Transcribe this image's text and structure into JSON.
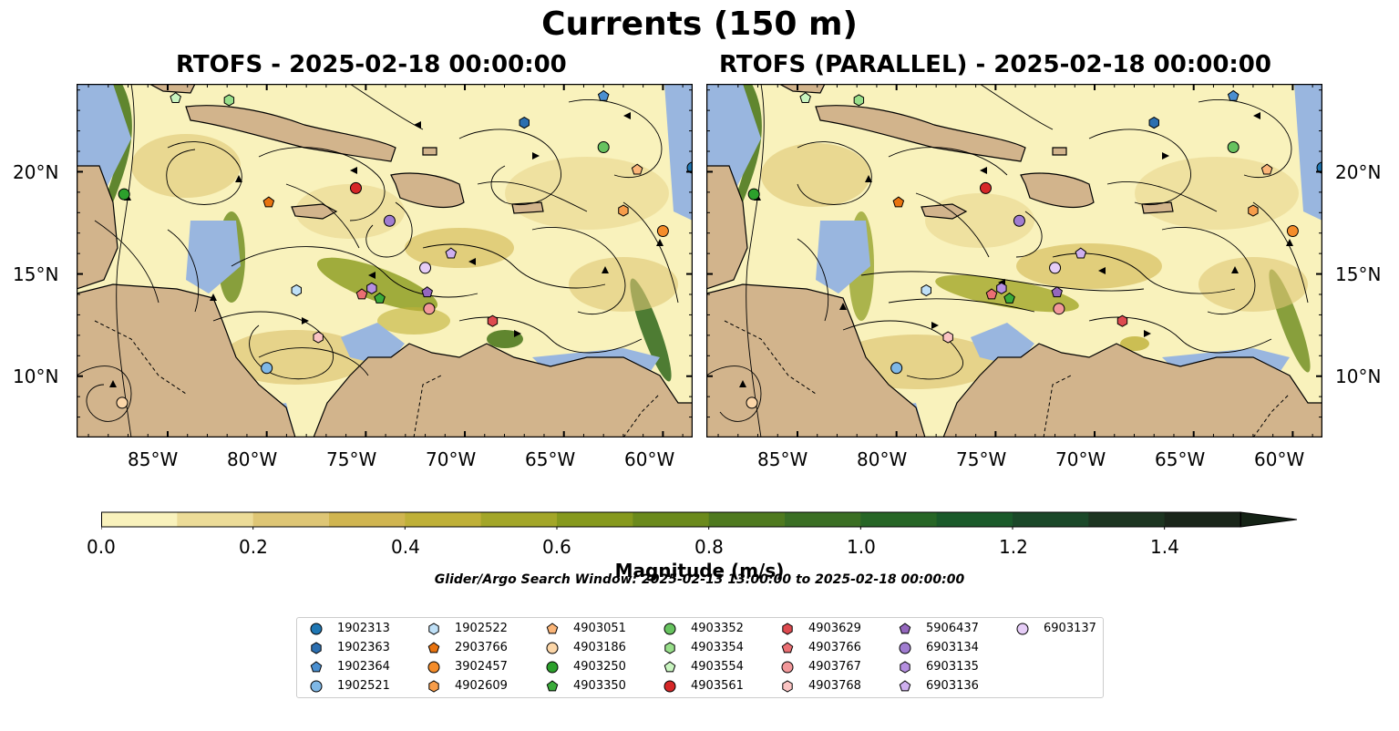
{
  "title": "Currents (150 m)",
  "panels": [
    {
      "title": "RTOFS - 2025-02-18 00:00:00"
    },
    {
      "title": "RTOFS (PARALLEL) - 2025-02-18 00:00:00"
    }
  ],
  "axes": {
    "x_ticks": [
      "85°W",
      "80°W",
      "75°W",
      "70°W",
      "65°W",
      "60°W"
    ],
    "x_values": [
      -85,
      -80,
      -75,
      -70,
      -65,
      -60
    ],
    "y_ticks": [
      "20°N",
      "15°N",
      "10°N"
    ],
    "y_values": [
      20,
      15,
      10
    ],
    "lon_range": [
      -89.6,
      -58.5
    ],
    "lat_range": [
      7.0,
      24.3
    ]
  },
  "colorbar": {
    "label": "Magnitude (m/s)",
    "ticks": [
      "0.0",
      "0.2",
      "0.4",
      "0.6",
      "0.8",
      "1.0",
      "1.2",
      "1.4"
    ],
    "tick_values": [
      0.0,
      0.2,
      0.4,
      0.6,
      0.8,
      1.0,
      1.2,
      1.4
    ],
    "range": [
      0.0,
      1.5
    ],
    "extend": "max",
    "colors": [
      "#f9f2bc",
      "#ecdc98",
      "#dec675",
      "#d0b550",
      "#bfb038",
      "#a3a628",
      "#86991d",
      "#6b8a1c",
      "#4f7a1f",
      "#3b6f24",
      "#276626",
      "#1a5a2a",
      "#1b4829",
      "#1d3521",
      "#1a261a",
      "#152316"
    ]
  },
  "search_window": "Glider/Argo Search Window: 2025-02-13 13:00:00 to 2025-02-18 00:00:00",
  "colors": {
    "land": "#d2b48c",
    "water": "#99b6df",
    "legend_border": "#cccccc"
  },
  "legend": [
    {
      "label": "1902313",
      "marker": "circle",
      "color": "#1f77b4"
    },
    {
      "label": "1902363",
      "marker": "hexagon",
      "color": "#2c6fb0"
    },
    {
      "label": "1902364",
      "marker": "pentagon",
      "color": "#4a8fd0"
    },
    {
      "label": "1902521",
      "marker": "circle",
      "color": "#7fb8e6"
    },
    {
      "label": "1902522",
      "marker": "hexagon",
      "color": "#bfe0f7"
    },
    {
      "label": "2903766",
      "marker": "pentagon",
      "color": "#e8730f"
    },
    {
      "label": "3902457",
      "marker": "circle",
      "color": "#f48c2a"
    },
    {
      "label": "4902609",
      "marker": "hexagon",
      "color": "#f79d4a"
    },
    {
      "label": "4903051",
      "marker": "pentagon",
      "color": "#fbb578"
    },
    {
      "label": "4903186",
      "marker": "circle",
      "color": "#fcd6a8"
    },
    {
      "label": "4903250",
      "marker": "circle",
      "color": "#2ca02c"
    },
    {
      "label": "4903350",
      "marker": "pentagon",
      "color": "#3aab3a"
    },
    {
      "label": "4903352",
      "marker": "circle",
      "color": "#67c35f"
    },
    {
      "label": "4903354",
      "marker": "hexagon",
      "color": "#98df8a"
    },
    {
      "label": "4903554",
      "marker": "pentagon",
      "color": "#c9f5c0"
    },
    {
      "label": "4903561",
      "marker": "circle",
      "color": "#d62728"
    },
    {
      "label": "4903629",
      "marker": "hexagon",
      "color": "#dd4a4f"
    },
    {
      "label": "4903766",
      "marker": "pentagon",
      "color": "#ea6f73"
    },
    {
      "label": "4903767",
      "marker": "circle",
      "color": "#f2989a"
    },
    {
      "label": "4903768",
      "marker": "hexagon",
      "color": "#fbc4c3"
    },
    {
      "label": "5906437",
      "marker": "pentagon",
      "color": "#9467bd"
    },
    {
      "label": "6903134",
      "marker": "circle",
      "color": "#a07cd0"
    },
    {
      "label": "6903135",
      "marker": "hexagon",
      "color": "#b58fe0"
    },
    {
      "label": "6903136",
      "marker": "pentagon",
      "color": "#cfb0ef"
    },
    {
      "label": "6903137",
      "marker": "circle",
      "color": "#e6cdf7"
    }
  ],
  "chart_data": {
    "type": "map",
    "observation_points": {
      "panel_1": [
        {
          "id": "1902313",
          "lon": -58.5,
          "lat": 20.2
        },
        {
          "id": "1902363",
          "lon": -67.0,
          "lat": 22.4
        },
        {
          "id": "1902364",
          "lon": -63.0,
          "lat": 23.7
        },
        {
          "id": "1902521",
          "lon": -80.0,
          "lat": 10.4
        },
        {
          "id": "1902522",
          "lon": -78.5,
          "lat": 14.2
        },
        {
          "id": "2903766",
          "lon": -79.9,
          "lat": 18.5
        },
        {
          "id": "3902457",
          "lon": -60.0,
          "lat": 17.1
        },
        {
          "id": "4902609",
          "lon": -62.0,
          "lat": 18.1
        },
        {
          "id": "4903051",
          "lon": -61.3,
          "lat": 20.1
        },
        {
          "id": "4903186",
          "lon": -87.3,
          "lat": 8.7
        },
        {
          "id": "4903250",
          "lon": -87.2,
          "lat": 18.9
        },
        {
          "id": "4903350",
          "lon": -74.3,
          "lat": 13.8
        },
        {
          "id": "4903352",
          "lon": -63.0,
          "lat": 21.2
        },
        {
          "id": "4903354",
          "lon": -81.9,
          "lat": 23.5
        },
        {
          "id": "4903554",
          "lon": -84.6,
          "lat": 23.6
        },
        {
          "id": "4903561",
          "lon": -75.5,
          "lat": 19.2
        },
        {
          "id": "4903629",
          "lon": -68.6,
          "lat": 12.7
        },
        {
          "id": "4903766",
          "lon": -75.2,
          "lat": 14.0
        },
        {
          "id": "4903767",
          "lon": -71.8,
          "lat": 13.3
        },
        {
          "id": "4903768",
          "lon": -77.4,
          "lat": 11.9
        },
        {
          "id": "5906437",
          "lon": -71.9,
          "lat": 14.1
        },
        {
          "id": "6903134",
          "lon": -73.8,
          "lat": 17.6
        },
        {
          "id": "6903135",
          "lon": -74.7,
          "lat": 14.3
        },
        {
          "id": "6903136",
          "lon": -70.7,
          "lat": 16.0
        },
        {
          "id": "6903137",
          "lon": -72.0,
          "lat": 15.3
        }
      ],
      "panel_2": [
        {
          "id": "1902313",
          "lon": -58.5,
          "lat": 20.2
        },
        {
          "id": "1902363",
          "lon": -67.0,
          "lat": 22.4
        },
        {
          "id": "1902364",
          "lon": -63.0,
          "lat": 23.7
        },
        {
          "id": "1902521",
          "lon": -80.0,
          "lat": 10.4
        },
        {
          "id": "1902522",
          "lon": -78.5,
          "lat": 14.2
        },
        {
          "id": "2903766",
          "lon": -79.9,
          "lat": 18.5
        },
        {
          "id": "3902457",
          "lon": -60.0,
          "lat": 17.1
        },
        {
          "id": "4902609",
          "lon": -62.0,
          "lat": 18.1
        },
        {
          "id": "4903051",
          "lon": -61.3,
          "lat": 20.1
        },
        {
          "id": "4903186",
          "lon": -87.3,
          "lat": 8.7
        },
        {
          "id": "4903250",
          "lon": -87.2,
          "lat": 18.9
        },
        {
          "id": "4903350",
          "lon": -74.3,
          "lat": 13.8
        },
        {
          "id": "4903352",
          "lon": -63.0,
          "lat": 21.2
        },
        {
          "id": "4903354",
          "lon": -81.9,
          "lat": 23.5
        },
        {
          "id": "4903554",
          "lon": -84.6,
          "lat": 23.6
        },
        {
          "id": "4903561",
          "lon": -75.5,
          "lat": 19.2
        },
        {
          "id": "4903629",
          "lon": -68.6,
          "lat": 12.7
        },
        {
          "id": "4903766",
          "lon": -75.2,
          "lat": 14.0
        },
        {
          "id": "4903767",
          "lon": -71.8,
          "lat": 13.3
        },
        {
          "id": "4903768",
          "lon": -77.4,
          "lat": 11.9
        },
        {
          "id": "5906437",
          "lon": -71.9,
          "lat": 14.1
        },
        {
          "id": "6903134",
          "lon": -73.8,
          "lat": 17.6
        },
        {
          "id": "6903135",
          "lon": -74.7,
          "lat": 14.3
        },
        {
          "id": "6903136",
          "lon": -70.7,
          "lat": 16.0
        },
        {
          "id": "6903137",
          "lon": -72.0,
          "lat": 15.3
        }
      ]
    }
  }
}
